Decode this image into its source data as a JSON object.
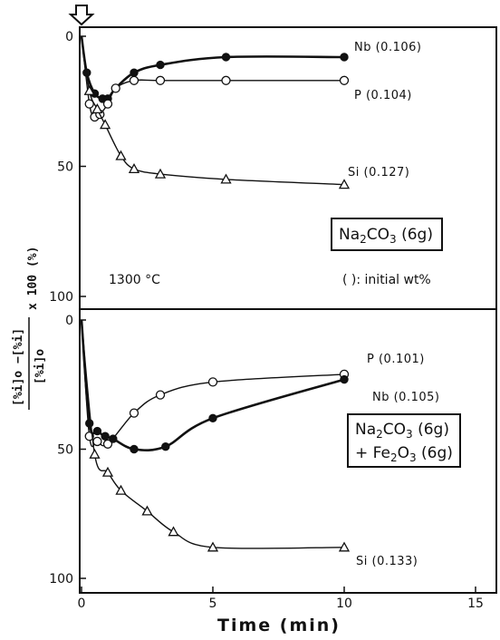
{
  "chart_data": [
    {
      "type": "line",
      "panel": "top",
      "ylim": [
        0,
        100
      ],
      "y_inverted": true,
      "xlim": [
        0,
        16
      ],
      "yticks": [
        0,
        50,
        100
      ],
      "series": [
        {
          "name": "Nb (0.106)",
          "marker": "filled-circle",
          "x": [
            0,
            0.2,
            0.5,
            0.8,
            1.0,
            1.3,
            2.0,
            3.0,
            5.5,
            10.0
          ],
          "y": [
            0,
            14,
            22,
            24,
            24,
            20,
            14,
            11,
            8,
            8
          ]
        },
        {
          "name": "P (0.104)",
          "marker": "open-circle",
          "x": [
            0,
            0.3,
            0.5,
            0.7,
            1.0,
            1.3,
            2.0,
            3.0,
            5.5,
            10.0
          ],
          "y": [
            0,
            26,
            31,
            30,
            26,
            20,
            17,
            17,
            17,
            17
          ]
        },
        {
          "name": "Si (0.127)",
          "marker": "open-triangle",
          "x": [
            0,
            0.3,
            0.6,
            0.9,
            1.5,
            2.0,
            3.0,
            5.5,
            10.0
          ],
          "y": [
            0,
            21,
            28,
            34,
            46,
            51,
            53,
            55,
            57
          ]
        }
      ],
      "box_label_main": "Na",
      "box_label_sub": "2",
      "box_label_mid": "CO",
      "box_label_sub2": "3",
      "box_label_tail": " (6g)",
      "annotation_temp": "1300 °C",
      "annotation_initial": "( ): initial   wt%"
    },
    {
      "type": "line",
      "panel": "bottom",
      "ylim": [
        0,
        100
      ],
      "y_inverted": true,
      "xlim": [
        0,
        16
      ],
      "xticks": [
        0,
        5,
        10,
        15
      ],
      "yticks": [
        0,
        50,
        100
      ],
      "series": [
        {
          "name": "P (0.101)",
          "marker": "open-circle",
          "x": [
            0,
            0.3,
            0.6,
            1.0,
            2.0,
            3.0,
            5.0,
            10.0
          ],
          "y": [
            0,
            45,
            47,
            48,
            36,
            29,
            24,
            21
          ]
        },
        {
          "name": "Nb (0.105)",
          "marker": "filled-circle",
          "x": [
            0,
            0.3,
            0.6,
            0.9,
            1.2,
            2.0,
            3.2,
            5.0,
            10.0
          ],
          "y": [
            0,
            40,
            43,
            45,
            46,
            50,
            49,
            38,
            23
          ]
        },
        {
          "name": "Si (0.133)",
          "marker": "open-triangle",
          "x": [
            0,
            0.5,
            1.0,
            1.5,
            2.5,
            3.5,
            5.0,
            10.0
          ],
          "y": [
            0,
            52,
            59,
            66,
            74,
            82,
            88,
            88
          ]
        }
      ],
      "box_line1_a": "Na",
      "box_line1_sub1": "2",
      "box_line1_b": "CO",
      "box_line1_sub2": "3",
      "box_line1_c": " (6g)",
      "box_line2_a": "+ Fe",
      "box_line2_sub1": "2",
      "box_line2_b": "O",
      "box_line2_sub2": "3",
      "box_line2_c": " (6g)"
    }
  ],
  "axes": {
    "xlabel": "Time (min)",
    "ylabel_num": "[%i]o −[%i]",
    "ylabel_den": "[%i]o",
    "ylabel_tail": "x 100  (%)"
  }
}
